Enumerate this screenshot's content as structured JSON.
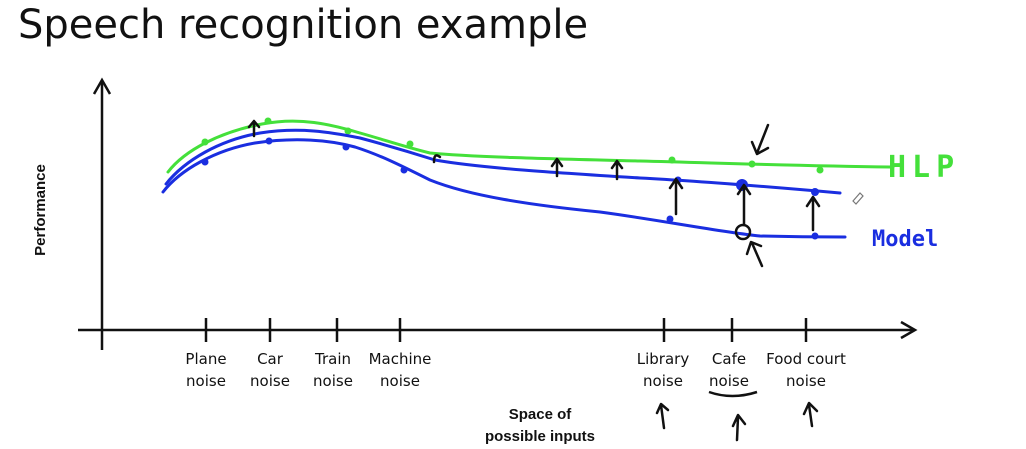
{
  "title": "Speech recognition example",
  "y_axis_label": "Performance",
  "x_axis_label_line1": "Space of",
  "x_axis_label_line2": "possible inputs",
  "categories": [
    {
      "line1": "Plane",
      "line2": "noise"
    },
    {
      "line1": "Car",
      "line2": "noise"
    },
    {
      "line1": "Train",
      "line2": "noise"
    },
    {
      "line1": "Machine",
      "line2": "noise"
    },
    {
      "line1": "Library",
      "line2": "noise"
    },
    {
      "line1": "Cafe",
      "line2": "noise"
    },
    {
      "line1": "Food court",
      "line2": "noise"
    }
  ],
  "curve_labels": {
    "hlp": "HLP",
    "model": "Model"
  },
  "colors": {
    "hlp": "#44e03a",
    "model": "#1a2ee0",
    "ink": "#111111"
  }
}
